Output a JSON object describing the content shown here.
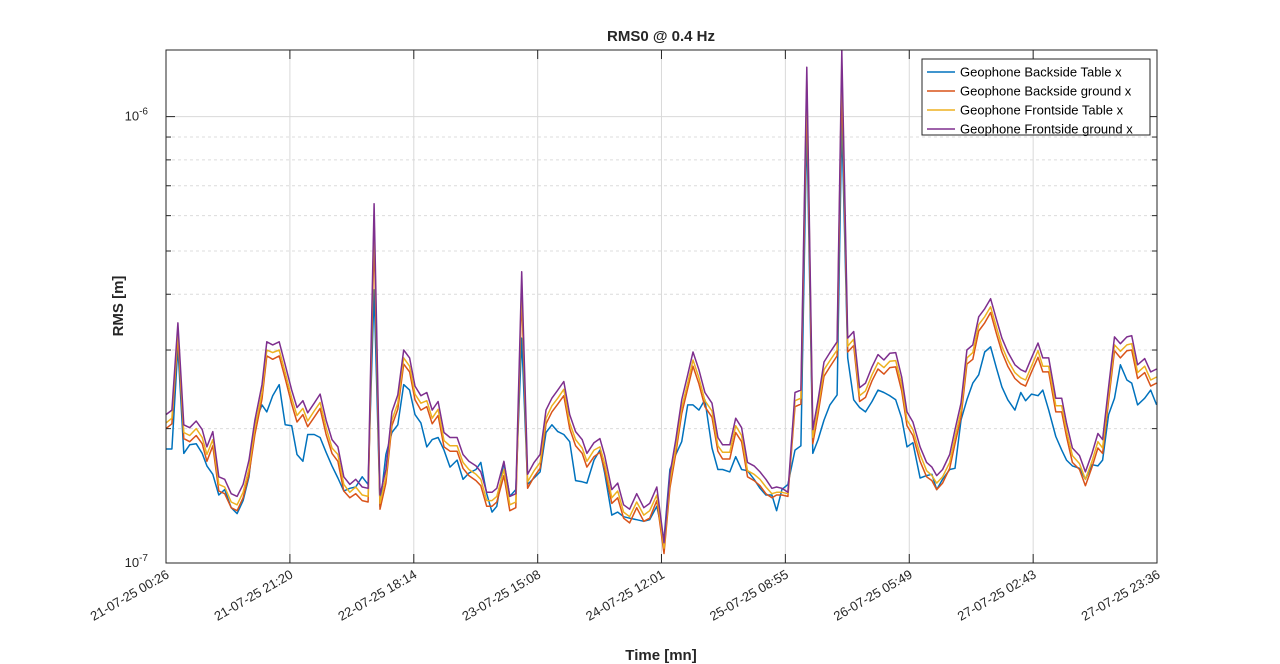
{
  "chart_data": {
    "type": "line",
    "title": "RMS0 @ 0.4 Hz",
    "xlabel": "Time [mn]",
    "ylabel": "RMS [m]",
    "yscale": "log",
    "ylim": [
      1e-07,
      1.41e-06
    ],
    "value_unit_multiplier": 1e-07,
    "x_unit": "hours since 21-07-25 00:26",
    "xlim": [
      0,
      167.17
    ],
    "grid": true,
    "legend_position": "top-right",
    "xticks": [
      {
        "value": 0,
        "label": "21-07-25 00:26"
      },
      {
        "value": 20.9,
        "label": "21-07-25 21:20"
      },
      {
        "value": 41.8,
        "label": "22-07-25 18:14"
      },
      {
        "value": 62.7,
        "label": "23-07-25 15:08"
      },
      {
        "value": 83.58,
        "label": "24-07-25 12:01"
      },
      {
        "value": 104.48,
        "label": "25-07-25 08:55"
      },
      {
        "value": 125.38,
        "label": "26-07-25 05:49"
      },
      {
        "value": 146.28,
        "label": "27-07-25 02:43"
      },
      {
        "value": 167.17,
        "label": "27-07-25 23:36"
      }
    ],
    "yticks": [
      {
        "value": 1e-07,
        "base": "10",
        "exp": "-7"
      },
      {
        "value": 1e-06,
        "base": "10",
        "exp": "-6"
      }
    ],
    "x": [
      0.0,
      1.0,
      2.0,
      3.0,
      4.0,
      5.1,
      6.1,
      6.9,
      7.9,
      8.9,
      9.9,
      11.0,
      12.0,
      13.0,
      14.0,
      15.0,
      16.2,
      17.0,
      18.0,
      19.1,
      20.1,
      21.2,
      22.1,
      23.1,
      23.9,
      25.0,
      26.0,
      27.0,
      28.0,
      29.0,
      30.0,
      31.0,
      32.0,
      33.1,
      34.1,
      35.1,
      36.1,
      37.1,
      38.1,
      39.1,
      40.1,
      41.1,
      42.0,
      43.0,
      44.0,
      44.9,
      45.9,
      46.9,
      47.9,
      49.1,
      50.1,
      51.1,
      52.3,
      53.1,
      54.1,
      55.0,
      55.8,
      57.0,
      58.0,
      59.0,
      60.0,
      61.0,
      62.1,
      63.1,
      64.1,
      65.1,
      66.1,
      67.1,
      68.1,
      69.1,
      70.2,
      71.0,
      72.2,
      73.2,
      74.0,
      75.2,
      76.2,
      77.2,
      78.2,
      79.4,
      80.6,
      81.6,
      82.8,
      84.0,
      85.0,
      86.0,
      87.0,
      88.0,
      88.9,
      89.9,
      90.9,
      92.1,
      93.1,
      93.9,
      95.1,
      96.1,
      97.1,
      98.1,
      99.2,
      100.2,
      101.2,
      102.2,
      103.0,
      103.9,
      104.9,
      106.1,
      107.1,
      108.1,
      109.1,
      110.0,
      111.0,
      112.0,
      113.2,
      114.0,
      115.0,
      116.0,
      117.0,
      118.0,
      119.1,
      120.1,
      121.1,
      122.1,
      123.1,
      124.1,
      125.0,
      126.0,
      127.2,
      128.3,
      129.2,
      130.0,
      131.0,
      132.2,
      133.1,
      134.1,
      135.1,
      136.1,
      137.1,
      138.1,
      139.1,
      140.1,
      141.0,
      142.0,
      143.2,
      144.2,
      145.0,
      146.0,
      147.1,
      147.9,
      148.9,
      150.1,
      151.1,
      151.9,
      152.9,
      154.1,
      155.1,
      156.2,
      157.2,
      158.0,
      159.0,
      160.0,
      161.0,
      162.1,
      162.9,
      163.9,
      165.1,
      166.1,
      167.1
    ],
    "series": [
      {
        "name": "Geophone Backside Table x",
        "color": "#0072BD",
        "values": [
          1.8,
          1.8,
          3.05,
          1.76,
          1.84,
          1.85,
          1.76,
          1.65,
          1.58,
          1.42,
          1.46,
          1.33,
          1.29,
          1.38,
          1.56,
          2.06,
          2.26,
          2.18,
          2.37,
          2.51,
          2.04,
          2.03,
          1.75,
          1.69,
          1.94,
          1.94,
          1.91,
          1.77,
          1.65,
          1.55,
          1.45,
          1.47,
          1.48,
          1.56,
          1.5,
          4.09,
          1.34,
          1.75,
          1.96,
          2.04,
          2.51,
          2.44,
          2.15,
          2.06,
          1.82,
          1.89,
          1.91,
          1.79,
          1.64,
          1.7,
          1.54,
          1.59,
          1.62,
          1.68,
          1.43,
          1.3,
          1.34,
          1.68,
          1.41,
          1.46,
          3.19,
          1.5,
          1.55,
          1.6,
          1.96,
          2.04,
          1.97,
          1.94,
          1.87,
          1.53,
          1.52,
          1.51,
          1.7,
          1.79,
          1.59,
          1.28,
          1.3,
          1.27,
          1.26,
          1.25,
          1.24,
          1.25,
          1.34,
          1.13,
          1.62,
          1.75,
          1.87,
          2.26,
          2.26,
          2.2,
          2.32,
          1.81,
          1.62,
          1.62,
          1.6,
          1.73,
          1.62,
          1.61,
          1.54,
          1.47,
          1.42,
          1.42,
          1.31,
          1.46,
          1.5,
          1.79,
          1.83,
          9.6,
          1.76,
          1.89,
          2.09,
          2.26,
          2.38,
          9.8,
          2.88,
          2.32,
          2.23,
          2.18,
          2.3,
          2.44,
          2.41,
          2.37,
          2.32,
          2.11,
          1.82,
          1.86,
          1.55,
          1.57,
          1.58,
          1.46,
          1.54,
          1.62,
          1.63,
          2.09,
          2.32,
          2.53,
          2.64,
          2.97,
          3.05,
          2.73,
          2.48,
          2.32,
          2.2,
          2.41,
          2.31,
          2.39,
          2.37,
          2.44,
          2.2,
          1.92,
          1.79,
          1.7,
          1.65,
          1.63,
          1.54,
          1.66,
          1.65,
          1.7,
          2.15,
          2.34,
          2.78,
          2.57,
          2.53,
          2.26,
          2.34,
          2.44,
          2.26
        ]
      },
      {
        "name": "Geophone Backside ground x",
        "color": "#D95319",
        "values": [
          2.0,
          2.05,
          3.21,
          1.9,
          1.87,
          1.93,
          1.85,
          1.69,
          1.83,
          1.45,
          1.43,
          1.33,
          1.31,
          1.4,
          1.58,
          1.94,
          2.33,
          2.91,
          2.86,
          2.91,
          2.59,
          2.27,
          2.07,
          2.15,
          2.02,
          2.12,
          2.22,
          1.94,
          1.76,
          1.69,
          1.45,
          1.4,
          1.43,
          1.38,
          1.37,
          5.4,
          1.32,
          1.51,
          2.03,
          2.21,
          2.79,
          2.68,
          2.32,
          2.2,
          2.24,
          2.05,
          2.14,
          1.82,
          1.78,
          1.78,
          1.63,
          1.57,
          1.53,
          1.49,
          1.34,
          1.34,
          1.37,
          1.57,
          1.31,
          1.33,
          4.0,
          1.47,
          1.56,
          1.63,
          2.05,
          2.18,
          2.27,
          2.37,
          2.0,
          1.83,
          1.76,
          1.64,
          1.73,
          1.77,
          1.62,
          1.36,
          1.4,
          1.26,
          1.23,
          1.33,
          1.24,
          1.26,
          1.38,
          1.05,
          1.47,
          1.76,
          2.16,
          2.46,
          2.76,
          2.52,
          2.24,
          2.12,
          1.78,
          1.71,
          1.71,
          1.96,
          1.87,
          1.56,
          1.53,
          1.49,
          1.43,
          1.4,
          1.42,
          1.42,
          1.41,
          2.24,
          2.27,
          11.2,
          1.85,
          2.16,
          2.62,
          2.75,
          2.91,
          12.0,
          2.97,
          3.07,
          2.3,
          2.35,
          2.56,
          2.72,
          2.65,
          2.74,
          2.75,
          2.43,
          2.03,
          1.93,
          1.69,
          1.56,
          1.53,
          1.46,
          1.51,
          1.63,
          1.85,
          2.12,
          2.79,
          2.86,
          3.31,
          3.45,
          3.64,
          3.26,
          2.97,
          2.76,
          2.59,
          2.52,
          2.49,
          2.68,
          2.89,
          2.68,
          2.68,
          2.18,
          2.18,
          1.92,
          1.68,
          1.62,
          1.49,
          1.64,
          1.81,
          1.76,
          2.31,
          2.99,
          2.88,
          2.99,
          3.0,
          2.59,
          2.67,
          2.49,
          2.53
        ]
      },
      {
        "name": "Geophone Frontside Table x",
        "color": "#EDB120",
        "values": [
          2.06,
          2.11,
          3.31,
          1.96,
          1.93,
          2.0,
          1.91,
          1.75,
          1.89,
          1.5,
          1.48,
          1.37,
          1.35,
          1.44,
          1.63,
          2.01,
          2.41,
          3.0,
          2.96,
          3.0,
          2.67,
          2.34,
          2.14,
          2.22,
          2.08,
          2.19,
          2.29,
          2.01,
          1.81,
          1.75,
          1.5,
          1.44,
          1.48,
          1.42,
          1.41,
          5.9,
          1.36,
          1.56,
          2.09,
          2.28,
          2.88,
          2.76,
          2.39,
          2.28,
          2.31,
          2.11,
          2.21,
          1.88,
          1.83,
          1.83,
          1.68,
          1.62,
          1.58,
          1.54,
          1.38,
          1.38,
          1.41,
          1.62,
          1.35,
          1.37,
          4.2,
          1.52,
          1.61,
          1.68,
          2.11,
          2.25,
          2.34,
          2.45,
          2.06,
          1.89,
          1.81,
          1.69,
          1.79,
          1.82,
          1.67,
          1.4,
          1.45,
          1.3,
          1.27,
          1.37,
          1.28,
          1.31,
          1.42,
          1.08,
          1.52,
          1.81,
          2.23,
          2.53,
          2.85,
          2.6,
          2.31,
          2.19,
          1.83,
          1.77,
          1.77,
          2.03,
          1.93,
          1.61,
          1.58,
          1.54,
          1.48,
          1.43,
          1.44,
          1.44,
          1.43,
          2.31,
          2.34,
          12.0,
          1.91,
          2.23,
          2.71,
          2.84,
          3.0,
          13.0,
          3.06,
          3.17,
          2.37,
          2.43,
          2.64,
          2.81,
          2.74,
          2.83,
          2.84,
          2.51,
          2.09,
          1.99,
          1.75,
          1.61,
          1.57,
          1.51,
          1.56,
          1.68,
          1.91,
          2.19,
          2.88,
          2.96,
          3.42,
          3.56,
          3.75,
          3.37,
          3.06,
          2.85,
          2.67,
          2.6,
          2.57,
          2.76,
          2.99,
          2.76,
          2.76,
          2.25,
          2.25,
          1.98,
          1.74,
          1.67,
          1.54,
          1.69,
          1.87,
          1.81,
          2.38,
          3.08,
          2.98,
          3.08,
          3.1,
          2.67,
          2.76,
          2.57,
          2.61
        ]
      },
      {
        "name": "Geophone Frontside ground x",
        "color": "#7E2F8E",
        "values": [
          2.15,
          2.2,
          3.45,
          2.04,
          2.01,
          2.08,
          1.99,
          1.82,
          1.97,
          1.56,
          1.54,
          1.43,
          1.41,
          1.5,
          1.7,
          2.09,
          2.51,
          3.13,
          3.08,
          3.13,
          2.78,
          2.44,
          2.23,
          2.31,
          2.17,
          2.28,
          2.39,
          2.09,
          1.89,
          1.82,
          1.56,
          1.5,
          1.54,
          1.48,
          1.47,
          6.38,
          1.42,
          1.62,
          2.18,
          2.38,
          3.0,
          2.88,
          2.49,
          2.37,
          2.41,
          2.2,
          2.3,
          1.96,
          1.91,
          1.91,
          1.75,
          1.69,
          1.65,
          1.6,
          1.44,
          1.44,
          1.47,
          1.69,
          1.41,
          1.43,
          4.49,
          1.58,
          1.68,
          1.75,
          2.2,
          2.34,
          2.44,
          2.55,
          2.15,
          1.97,
          1.89,
          1.76,
          1.86,
          1.9,
          1.74,
          1.46,
          1.51,
          1.35,
          1.32,
          1.43,
          1.33,
          1.36,
          1.48,
          1.11,
          1.58,
          1.89,
          2.32,
          2.64,
          2.97,
          2.71,
          2.41,
          2.28,
          1.91,
          1.84,
          1.84,
          2.11,
          2.01,
          1.68,
          1.65,
          1.6,
          1.54,
          1.47,
          1.48,
          1.47,
          1.44,
          2.41,
          2.44,
          12.9,
          1.99,
          2.32,
          2.82,
          2.96,
          3.13,
          14.1,
          3.19,
          3.3,
          2.47,
          2.53,
          2.75,
          2.93,
          2.85,
          2.95,
          2.96,
          2.61,
          2.18,
          2.07,
          1.82,
          1.68,
          1.64,
          1.57,
          1.62,
          1.75,
          1.99,
          2.28,
          3.0,
          3.08,
          3.56,
          3.71,
          3.91,
          3.51,
          3.19,
          2.97,
          2.78,
          2.71,
          2.68,
          2.88,
          3.11,
          2.88,
          2.88,
          2.34,
          2.34,
          2.06,
          1.81,
          1.74,
          1.6,
          1.76,
          1.95,
          1.89,
          2.48,
          3.21,
          3.1,
          3.21,
          3.23,
          2.78,
          2.87,
          2.68,
          2.72
        ]
      }
    ]
  }
}
